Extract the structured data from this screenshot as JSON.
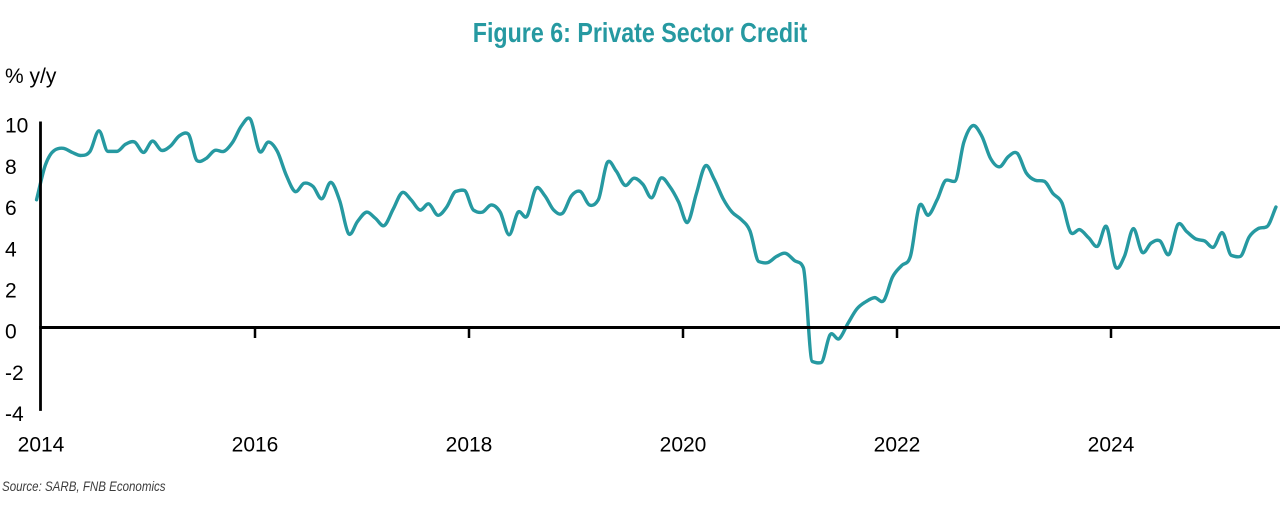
{
  "chart_data": {
    "type": "line",
    "title": "Figure 6: Private Sector Credit",
    "ylabel": "% y/y",
    "source_note": "Source: SARB, FNB Economics",
    "series_name": "Private sector credit growth",
    "line_color": "#2699A1",
    "title_color": "#2699A1",
    "axis_color": "#000000",
    "grid": false,
    "legend": false,
    "ylim": [
      -4,
      10
    ],
    "y_ticks": [
      10,
      8,
      6,
      4,
      2,
      0,
      -2,
      -4
    ],
    "x_ticks": [
      2014,
      2016,
      2018,
      2020,
      2022,
      2024
    ],
    "start_date": "2013-12",
    "end_date": "2025-07",
    "frequency": "monthly",
    "values": [
      6.2,
      7.9,
      8.6,
      8.7,
      8.5,
      8.35,
      8.55,
      9.55,
      8.55,
      8.55,
      8.9,
      9.0,
      8.5,
      9.05,
      8.6,
      8.8,
      9.3,
      9.4,
      8.1,
      8.2,
      8.6,
      8.55,
      9.0,
      9.8,
      10.1,
      8.55,
      9.0,
      8.55,
      7.4,
      6.6,
      7.0,
      6.85,
      6.25,
      7.05,
      6.15,
      4.55,
      5.15,
      5.6,
      5.3,
      4.95,
      5.75,
      6.55,
      6.2,
      5.7,
      6.0,
      5.45,
      5.85,
      6.6,
      6.65,
      5.7,
      5.6,
      5.95,
      5.6,
      4.5,
      5.6,
      5.4,
      6.75,
      6.4,
      5.7,
      5.55,
      6.4,
      6.6,
      5.95,
      6.2,
      8.0,
      7.6,
      6.9,
      7.25,
      6.95,
      6.3,
      7.25,
      6.85,
      6.1,
      5.1,
      6.5,
      7.85,
      7.2,
      6.25,
      5.6,
      5.25,
      4.7,
      3.2,
      3.15,
      3.45,
      3.6,
      3.25,
      2.9,
      -1.65,
      -1.7,
      -0.35,
      -0.55,
      0.2,
      0.9,
      1.25,
      1.45,
      1.3,
      2.45,
      3.0,
      3.45,
      5.9,
      5.45,
      6.2,
      7.15,
      7.1,
      9.0,
      9.8,
      9.3,
      8.2,
      7.8,
      8.3,
      8.45,
      7.5,
      7.15,
      7.1,
      6.5,
      6.05,
      4.6,
      4.75,
      4.35,
      3.95,
      4.9,
      2.95,
      3.45,
      4.8,
      3.65,
      4.1,
      4.2,
      3.55,
      5.0,
      4.65,
      4.3,
      4.2,
      3.9,
      4.6,
      3.5,
      3.45,
      4.4,
      4.8,
      4.9,
      5.85
    ]
  }
}
